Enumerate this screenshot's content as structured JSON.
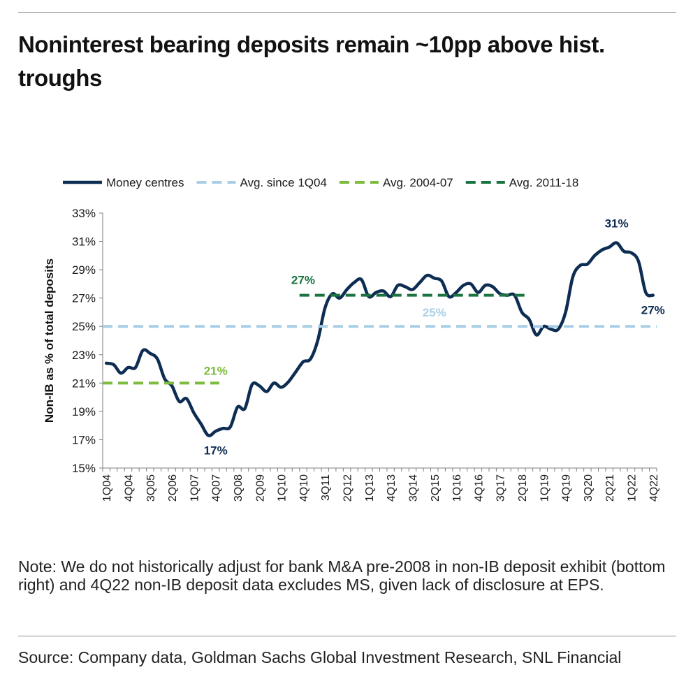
{
  "title": "Noninterest bearing deposits remain ~10pp above hist. troughs",
  "note": "Note: We do not historically adjust for bank M&A pre-2008 in non-IB deposit exhibit (bottom right) and 4Q22 non-IB deposit data excludes MS, given lack of disclosure at EPS.",
  "source": "Source: Company data, Goldman Sachs Global Investment Research, SNL Financial",
  "chart_data": {
    "type": "line",
    "ylabel": "Non-IB as % of total deposits",
    "xlabel": "",
    "ylim": [
      15,
      33
    ],
    "yticks": [
      "15%",
      "17%",
      "19%",
      "21%",
      "23%",
      "25%",
      "27%",
      "29%",
      "31%",
      "33%"
    ],
    "x_tick_labels": [
      "1Q04",
      "4Q04",
      "3Q05",
      "2Q06",
      "1Q07",
      "4Q07",
      "3Q08",
      "2Q09",
      "1Q10",
      "4Q10",
      "3Q11",
      "2Q12",
      "1Q13",
      "4Q13",
      "3Q14",
      "2Q15",
      "1Q16",
      "4Q16",
      "3Q17",
      "2Q18",
      "1Q19",
      "4Q19",
      "3Q20",
      "2Q21",
      "1Q22",
      "4Q22"
    ],
    "x": [
      "1Q04",
      "2Q04",
      "3Q04",
      "4Q04",
      "1Q05",
      "2Q05",
      "3Q05",
      "4Q05",
      "1Q06",
      "2Q06",
      "3Q06",
      "4Q06",
      "1Q07",
      "2Q07",
      "3Q07",
      "4Q07",
      "1Q08",
      "2Q08",
      "3Q08",
      "4Q08",
      "1Q09",
      "2Q09",
      "3Q09",
      "4Q09",
      "1Q10",
      "2Q10",
      "3Q10",
      "4Q10",
      "1Q11",
      "2Q11",
      "3Q11",
      "4Q11",
      "1Q12",
      "2Q12",
      "3Q12",
      "4Q12",
      "1Q13",
      "2Q13",
      "3Q13",
      "4Q13",
      "1Q14",
      "2Q14",
      "3Q14",
      "4Q14",
      "1Q15",
      "2Q15",
      "3Q15",
      "4Q15",
      "1Q16",
      "2Q16",
      "3Q16",
      "4Q16",
      "1Q17",
      "2Q17",
      "3Q17",
      "4Q17",
      "1Q18",
      "2Q18",
      "3Q18",
      "4Q18",
      "1Q19",
      "2Q19",
      "3Q19",
      "4Q19",
      "1Q20",
      "2Q20",
      "3Q20",
      "4Q20",
      "1Q21",
      "2Q21",
      "3Q21",
      "4Q21",
      "1Q22",
      "2Q22",
      "3Q22",
      "4Q22"
    ],
    "series": [
      {
        "name": "Money centres",
        "style": "solid",
        "color": "#0d2d52",
        "values": [
          22.4,
          22.3,
          21.7,
          22.1,
          22.1,
          23.3,
          23.1,
          22.7,
          21.3,
          20.8,
          19.7,
          19.9,
          18.9,
          18.1,
          17.3,
          17.6,
          17.8,
          17.9,
          19.3,
          19.2,
          20.9,
          20.8,
          20.4,
          21.0,
          20.7,
          21.1,
          21.8,
          22.5,
          22.7,
          24.0,
          26.3,
          27.3,
          27.0,
          27.6,
          28.1,
          28.3,
          27.1,
          27.4,
          27.5,
          27.1,
          27.9,
          27.8,
          27.6,
          28.1,
          28.6,
          28.4,
          28.2,
          27.1,
          27.4,
          27.9,
          28.0,
          27.4,
          27.9,
          27.8,
          27.3,
          27.2,
          27.2,
          26.0,
          25.5,
          24.4,
          25.0,
          24.8,
          24.8,
          26.0,
          28.5,
          29.3,
          29.4,
          30.0,
          30.4,
          30.6,
          30.9,
          30.3,
          30.2,
          29.6,
          27.4,
          27.2
        ]
      },
      {
        "name": "Avg. since 1Q04",
        "style": "dashed",
        "color": "#a9cfe6",
        "values": [
          25,
          25
        ],
        "x": [
          "1Q04",
          "4Q22"
        ]
      },
      {
        "name": "Avg. 2004-07",
        "style": "dashed",
        "color": "#7dbc3f",
        "values": [
          21,
          21
        ],
        "x": [
          "1Q04",
          "4Q07"
        ]
      },
      {
        "name": "Avg. 2011-18",
        "style": "dashed",
        "color": "#1a7340",
        "values": [
          27.2,
          27.2
        ],
        "x": [
          "4Q10",
          "2Q18"
        ]
      }
    ],
    "annotations": [
      {
        "text": "17%",
        "color": "#0d2d52",
        "x": "4Q07",
        "y": 17.3
      },
      {
        "text": "31%",
        "color": "#0d2d52",
        "x": "3Q21",
        "y": 30.9
      },
      {
        "text": "27%",
        "color": "#0d2d52",
        "x": "4Q22",
        "y": 27.2
      },
      {
        "text": "21%",
        "color": "#7dbc3f",
        "x": "4Q07",
        "y": 21
      },
      {
        "text": "25%",
        "color": "#a9cfe6",
        "x": "2Q15",
        "y": 25
      },
      {
        "text": "27%",
        "color": "#1a7340",
        "x": "4Q10",
        "y": 27.2
      }
    ],
    "legend": "top",
    "grid": false
  }
}
